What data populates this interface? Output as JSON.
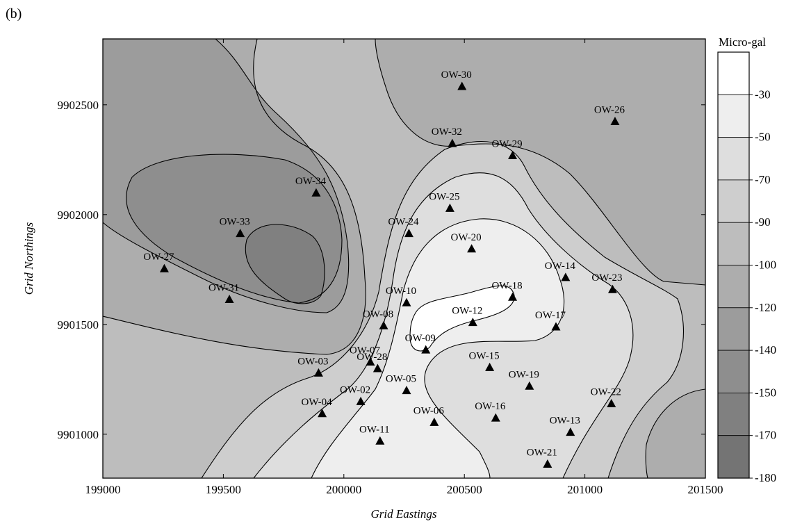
{
  "panel_label": "(b)",
  "chart_data": {
    "type": "contour",
    "title": "",
    "xlabel": "Grid Eastings",
    "ylabel": "Grid Northings",
    "xlim": [
      199000,
      201500
    ],
    "ylim": [
      9900800,
      9902800
    ],
    "xticks": [
      199000,
      199500,
      200000,
      200500,
      201000,
      201500
    ],
    "yticks": [
      9901000,
      9901500,
      9902000,
      9902500
    ],
    "grid": false,
    "colorbar": {
      "title": "Micro-gal",
      "levels": [
        -30,
        -50,
        -70,
        -90,
        -100,
        -120,
        -140,
        -150,
        -170,
        -180
      ],
      "colors": [
        "#ffffff",
        "#eeeeee",
        "#dedede",
        "#cecece",
        "#bdbdbd",
        "#adadad",
        "#9c9c9c",
        "#8e8e8e",
        "#808080",
        "#747474"
      ]
    },
    "wells": [
      {
        "name": "OW-30",
        "x": 200490,
        "y": 9902585
      },
      {
        "name": "OW-26",
        "x": 201125,
        "y": 9902425
      },
      {
        "name": "OW-32",
        "x": 200450,
        "y": 9902325
      },
      {
        "name": "OW-29",
        "x": 200700,
        "y": 9902270
      },
      {
        "name": "OW-34",
        "x": 199885,
        "y": 9902100
      },
      {
        "name": "OW-25",
        "x": 200440,
        "y": 9902030
      },
      {
        "name": "OW-33",
        "x": 199570,
        "y": 9901915
      },
      {
        "name": "OW-24",
        "x": 200270,
        "y": 9901915
      },
      {
        "name": "OW-20",
        "x": 200530,
        "y": 9901845
      },
      {
        "name": "OW-27",
        "x": 199255,
        "y": 9901755
      },
      {
        "name": "OW-14",
        "x": 200920,
        "y": 9901715
      },
      {
        "name": "OW-23",
        "x": 201115,
        "y": 9901660
      },
      {
        "name": "OW-18",
        "x": 200700,
        "y": 9901625
      },
      {
        "name": "OW-31",
        "x": 199525,
        "y": 9901615
      },
      {
        "name": "OW-10",
        "x": 200260,
        "y": 9901600
      },
      {
        "name": "OW-12",
        "x": 200535,
        "y": 9901510
      },
      {
        "name": "OW-08",
        "x": 200165,
        "y": 9901495
      },
      {
        "name": "OW-17",
        "x": 200880,
        "y": 9901490
      },
      {
        "name": "OW-09",
        "x": 200340,
        "y": 9901385
      },
      {
        "name": "OW-07",
        "x": 200110,
        "y": 9901330
      },
      {
        "name": "OW-28",
        "x": 200140,
        "y": 9901300
      },
      {
        "name": "OW-15",
        "x": 200605,
        "y": 9901305
      },
      {
        "name": "OW-03",
        "x": 199895,
        "y": 9901280
      },
      {
        "name": "OW-19",
        "x": 200770,
        "y": 9901220
      },
      {
        "name": "OW-05",
        "x": 200260,
        "y": 9901200
      },
      {
        "name": "OW-02",
        "x": 200070,
        "y": 9901150
      },
      {
        "name": "OW-22",
        "x": 201110,
        "y": 9901140
      },
      {
        "name": "OW-04",
        "x": 199910,
        "y": 9901095
      },
      {
        "name": "OW-16",
        "x": 200630,
        "y": 9901075
      },
      {
        "name": "OW-06",
        "x": 200375,
        "y": 9901055
      },
      {
        "name": "OW-13",
        "x": 200940,
        "y": 9901010
      },
      {
        "name": "OW-11",
        "x": 200150,
        "y": 9900970
      },
      {
        "name": "OW-21",
        "x": 200845,
        "y": 9900865
      }
    ]
  }
}
